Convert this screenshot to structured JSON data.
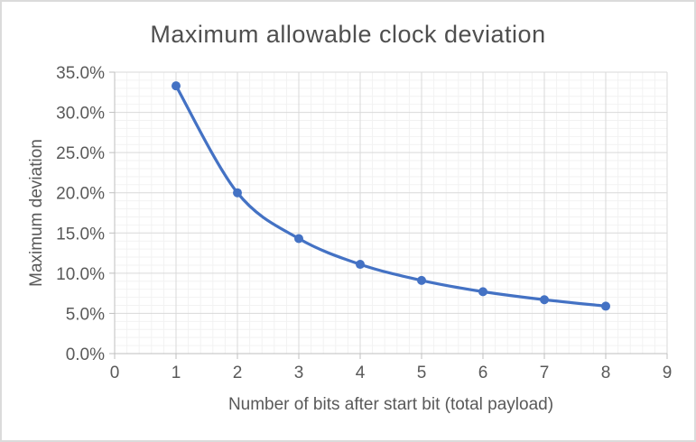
{
  "chart_data": {
    "type": "line",
    "title": "Maximum allowable clock deviation",
    "xlabel": "Number of bits after start bit (total payload)",
    "ylabel": "Maximum deviation",
    "series": [
      {
        "name": "Maximum deviation",
        "x": [
          1,
          2,
          3,
          4,
          5,
          6,
          7,
          8
        ],
        "y_percent": [
          33.3,
          20.0,
          14.3,
          11.1,
          9.1,
          7.7,
          6.7,
          5.9
        ]
      }
    ],
    "xlim": [
      0,
      9
    ],
    "ylim_percent": [
      0,
      35
    ],
    "x_major_unit": 1,
    "x_minor_unit": 0.2,
    "y_major_unit_percent": 5,
    "y_minor_unit_percent": 1,
    "x_tick_labels": [
      "0",
      "1",
      "2",
      "3",
      "4",
      "5",
      "6",
      "7",
      "8",
      "9"
    ],
    "y_tick_labels": [
      "0.0%",
      "5.0%",
      "10.0%",
      "15.0%",
      "20.0%",
      "25.0%",
      "30.0%",
      "35.0%"
    ],
    "grid": {
      "major": true,
      "minor": true
    },
    "legend": "none",
    "line_style": {
      "smooth": true,
      "width": 3.25,
      "marker": "circle",
      "marker_radius": 5
    },
    "colors": {
      "series": "#4472C4",
      "major_grid": "#D9D9D9",
      "minor_grid": "#F2F2F2",
      "axis_line": "#BFBFBF",
      "tick_text": "#595959",
      "title_text": "#4F4F4F",
      "background": "#FFFFFF",
      "frame_border": "#DBDBDB"
    }
  }
}
